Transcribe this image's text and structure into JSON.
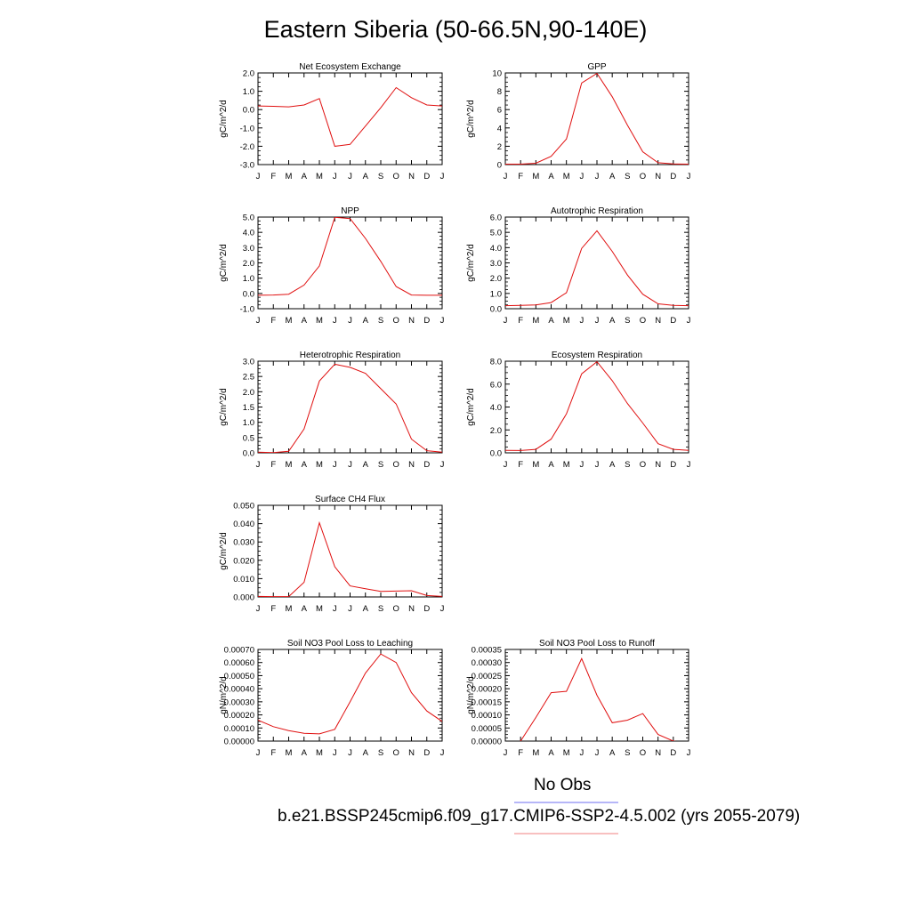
{
  "figure": {
    "title": "Eastern Siberia (50-66.5N,90-140E)",
    "legend": {
      "obs_label": "No Obs",
      "obs_color": "#6d6df0",
      "case_label": "b.e21.BSSP245cmip6.f09_g17.CMIP6-SSP2-4.5.002 (yrs 2055-2079)",
      "case_color": "#f08080"
    },
    "line_color": "#e01010"
  },
  "chart_data": [
    {
      "type": "line",
      "title": "Net Ecosystem Exchange",
      "ylabel": "gC/m^2/d",
      "categories": [
        "J",
        "F",
        "M",
        "A",
        "M",
        "J",
        "J",
        "A",
        "S",
        "O",
        "N",
        "D",
        "J"
      ],
      "ylim": [
        -3.0,
        2.0
      ],
      "yticks": [
        "2.0",
        "1.0",
        "0.0",
        "-1.0",
        "-2.0",
        "-3.0"
      ],
      "series": [
        {
          "values": [
            0.2,
            0.18,
            0.15,
            0.25,
            0.6,
            -2.0,
            -1.9,
            -0.9,
            0.1,
            1.2,
            0.65,
            0.25,
            0.2
          ]
        }
      ]
    },
    {
      "type": "line",
      "title": "GPP",
      "ylabel": "gC/m^2/d",
      "categories": [
        "J",
        "F",
        "M",
        "A",
        "M",
        "J",
        "J",
        "A",
        "S",
        "O",
        "N",
        "D",
        "J"
      ],
      "ylim": [
        0,
        10
      ],
      "yticks": [
        "10",
        "8",
        "6",
        "4",
        "2",
        "0"
      ],
      "series": [
        {
          "values": [
            0.05,
            0.05,
            0.15,
            0.9,
            2.8,
            8.9,
            9.95,
            7.4,
            4.3,
            1.4,
            0.2,
            0.07,
            0.05
          ]
        }
      ]
    },
    {
      "type": "line",
      "title": "NPP",
      "ylabel": "gC/m^2/d",
      "categories": [
        "J",
        "F",
        "M",
        "A",
        "M",
        "J",
        "J",
        "A",
        "S",
        "O",
        "N",
        "D",
        "J"
      ],
      "ylim": [
        -1.0,
        5.0
      ],
      "yticks": [
        "5.0",
        "4.0",
        "3.0",
        "2.0",
        "1.0",
        "0.0",
        "-1.0"
      ],
      "series": [
        {
          "values": [
            -0.12,
            -0.1,
            -0.05,
            0.55,
            1.8,
            4.98,
            4.9,
            3.6,
            2.1,
            0.45,
            -0.1,
            -0.12,
            -0.12
          ]
        }
      ]
    },
    {
      "type": "line",
      "title": "Autotrophic Respiration",
      "ylabel": "gC/m^2/d",
      "categories": [
        "J",
        "F",
        "M",
        "A",
        "M",
        "J",
        "J",
        "A",
        "S",
        "O",
        "N",
        "D",
        "J"
      ],
      "ylim": [
        0.0,
        6.0
      ],
      "yticks": [
        "6.0",
        "5.0",
        "4.0",
        "3.0",
        "2.0",
        "1.0",
        "0.0"
      ],
      "series": [
        {
          "values": [
            0.2,
            0.22,
            0.25,
            0.4,
            1.05,
            3.95,
            5.1,
            3.75,
            2.2,
            0.95,
            0.32,
            0.22,
            0.2
          ]
        }
      ]
    },
    {
      "type": "line",
      "title": "Heterotrophic Respiration",
      "ylabel": "gC/m^2/d",
      "categories": [
        "J",
        "F",
        "M",
        "A",
        "M",
        "J",
        "J",
        "A",
        "S",
        "O",
        "N",
        "D",
        "J"
      ],
      "ylim": [
        0.0,
        3.0
      ],
      "yticks": [
        "3.0",
        "2.5",
        "2.0",
        "1.5",
        "1.0",
        "0.5",
        "0.0"
      ],
      "series": [
        {
          "values": [
            0.02,
            0.01,
            0.05,
            0.78,
            2.35,
            2.9,
            2.8,
            2.6,
            2.1,
            1.6,
            0.45,
            0.07,
            0.02
          ]
        }
      ]
    },
    {
      "type": "line",
      "title": "Ecosystem Respiration",
      "ylabel": "gC/m^2/d",
      "categories": [
        "J",
        "F",
        "M",
        "A",
        "M",
        "J",
        "J",
        "A",
        "S",
        "O",
        "N",
        "D",
        "J"
      ],
      "ylim": [
        0.0,
        8.0
      ],
      "yticks": [
        "8.0",
        "6.0",
        "4.0",
        "2.0",
        "0.0"
      ],
      "series": [
        {
          "values": [
            0.22,
            0.2,
            0.3,
            1.2,
            3.4,
            6.9,
            7.95,
            6.3,
            4.3,
            2.6,
            0.8,
            0.3,
            0.22
          ]
        }
      ]
    },
    {
      "type": "line",
      "title": "Surface CH4 Flux",
      "ylabel": "gC/m^2/d",
      "categories": [
        "J",
        "F",
        "M",
        "A",
        "M",
        "J",
        "J",
        "A",
        "S",
        "O",
        "N",
        "D",
        "J"
      ],
      "ylim": [
        0.0,
        0.05
      ],
      "yticks": [
        "0.050",
        "0.040",
        "0.030",
        "0.020",
        "0.010",
        "0.000"
      ],
      "series": [
        {
          "values": [
            0.0003,
            0.0002,
            0.0002,
            0.008,
            0.0405,
            0.0165,
            0.006,
            0.0045,
            0.003,
            0.0032,
            0.0034,
            0.0008,
            0.0003
          ]
        }
      ]
    },
    {
      "type": "line",
      "title": "Soil NO3 Pool Loss to Leaching",
      "ylabel": "gN/m^2/d",
      "categories": [
        "J",
        "F",
        "M",
        "A",
        "M",
        "J",
        "J",
        "A",
        "S",
        "O",
        "N",
        "D",
        "J"
      ],
      "ylim": [
        0.0,
        0.0007
      ],
      "yticks": [
        "0.00070",
        "0.00060",
        "0.00050",
        "0.00040",
        "0.00030",
        "0.00020",
        "0.00010",
        "0.00000"
      ],
      "series": [
        {
          "values": [
            0.00016,
            0.00011,
            8e-05,
            6e-05,
            5.5e-05,
            9e-05,
            0.0003,
            0.00052,
            0.000665,
            0.0006,
            0.00037,
            0.00023,
            0.00015
          ]
        }
      ]
    },
    {
      "type": "line",
      "title": "Soil NO3 Pool Loss to Runoff",
      "ylabel": "gN/m^2/d",
      "categories": [
        "J",
        "F",
        "M",
        "A",
        "M",
        "J",
        "J",
        "A",
        "S",
        "O",
        "N",
        "D",
        "J"
      ],
      "ylim": [
        0.0,
        0.00035
      ],
      "yticks": [
        "0.00035",
        "0.00030",
        "0.00025",
        "0.00020",
        "0.00015",
        "0.00010",
        "0.00005",
        "0.00000"
      ],
      "series": [
        {
          "values": [
            -3e-05,
            0.0,
            9e-05,
            0.000185,
            0.00019,
            0.000315,
            0.000175,
            7e-05,
            8e-05,
            0.000105,
            2.5e-05,
            0.0,
            -1e-05
          ]
        }
      ]
    }
  ]
}
